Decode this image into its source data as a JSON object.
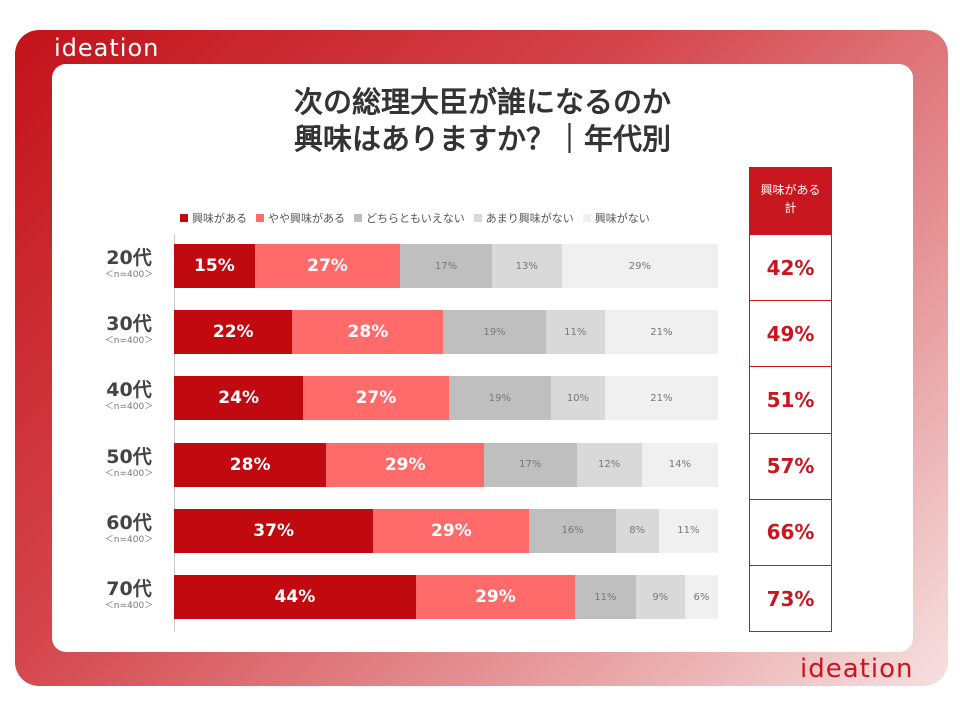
{
  "brand": {
    "logo_top": "ideation",
    "logo_bottom": "ideation"
  },
  "title_line1": "次の総理大臣が誰になるのか",
  "title_line2": "興味はありますか？｜年代別",
  "colors": {
    "興味がある": "#c00a0f",
    "やや興味がある": "#ff6b6b",
    "どちらともいえない": "#bfbfbf",
    "あまり興味がない": "#d9d9d9",
    "興味がない": "#f0f0f0",
    "accent": "#c8171e"
  },
  "chart_data": {
    "type": "bar",
    "orientation": "horizontal",
    "stacked": true,
    "normalized": true,
    "unit": "%",
    "legend_position": "top",
    "categories": [
      "20代",
      "30代",
      "40代",
      "50代",
      "60代",
      "70代"
    ],
    "sample_labels": [
      "＜n=400＞",
      "＜n=400＞",
      "＜n=400＞",
      "＜n=400＞",
      "＜n=400＞",
      "＜n=400＞"
    ],
    "series": [
      {
        "name": "興味がある",
        "values": [
          15,
          22,
          24,
          28,
          37,
          44
        ]
      },
      {
        "name": "やや興味がある",
        "values": [
          27,
          28,
          27,
          29,
          29,
          29
        ]
      },
      {
        "name": "どちらともいえない",
        "values": [
          17,
          19,
          19,
          17,
          16,
          11
        ]
      },
      {
        "name": "あまり興味がない",
        "values": [
          13,
          11,
          10,
          12,
          8,
          9
        ]
      },
      {
        "name": "興味がない",
        "values": [
          29,
          21,
          21,
          14,
          11,
          6
        ]
      }
    ],
    "total_header_line1": "興味がある",
    "total_header_line2": "計",
    "totals": [
      "42%",
      "49%",
      "51%",
      "57%",
      "66%",
      "73%"
    ]
  }
}
